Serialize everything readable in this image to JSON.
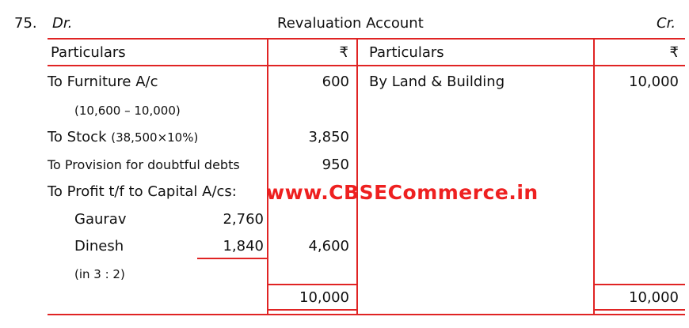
{
  "question_number": "75.",
  "dr_label": "Dr.",
  "title": "Revaluation Account",
  "cr_label": "Cr.",
  "header": {
    "particulars_left": "Particulars",
    "amount_left": "₹",
    "particulars_right": "Particulars",
    "amount_right": "₹"
  },
  "debit": {
    "furniture": "To Furniture A/c",
    "furniture_amt": "600",
    "furniture_note": "(10,600 – 10,000)",
    "stock": "To Stock",
    "stock_note": "(38,500×10%)",
    "stock_amt": "3,850",
    "provision": "To Provision for doubtful debts",
    "provision_amt": "950",
    "profit": "To Profit t/f to Capital A/cs:",
    "gaurav": "Gaurav",
    "gaurav_amt": "2,760",
    "dinesh": "Dinesh",
    "dinesh_amt": "1,840",
    "profit_amt": "4,600",
    "ratio": "(in 3 : 2)",
    "total": "10,000"
  },
  "credit": {
    "land": "By Land & Building",
    "land_amt": "10,000",
    "total": "10,000"
  },
  "watermark": "www.CBSECommerce.in",
  "colors": {
    "rule": "#e02424",
    "watermark": "#ee2020"
  }
}
